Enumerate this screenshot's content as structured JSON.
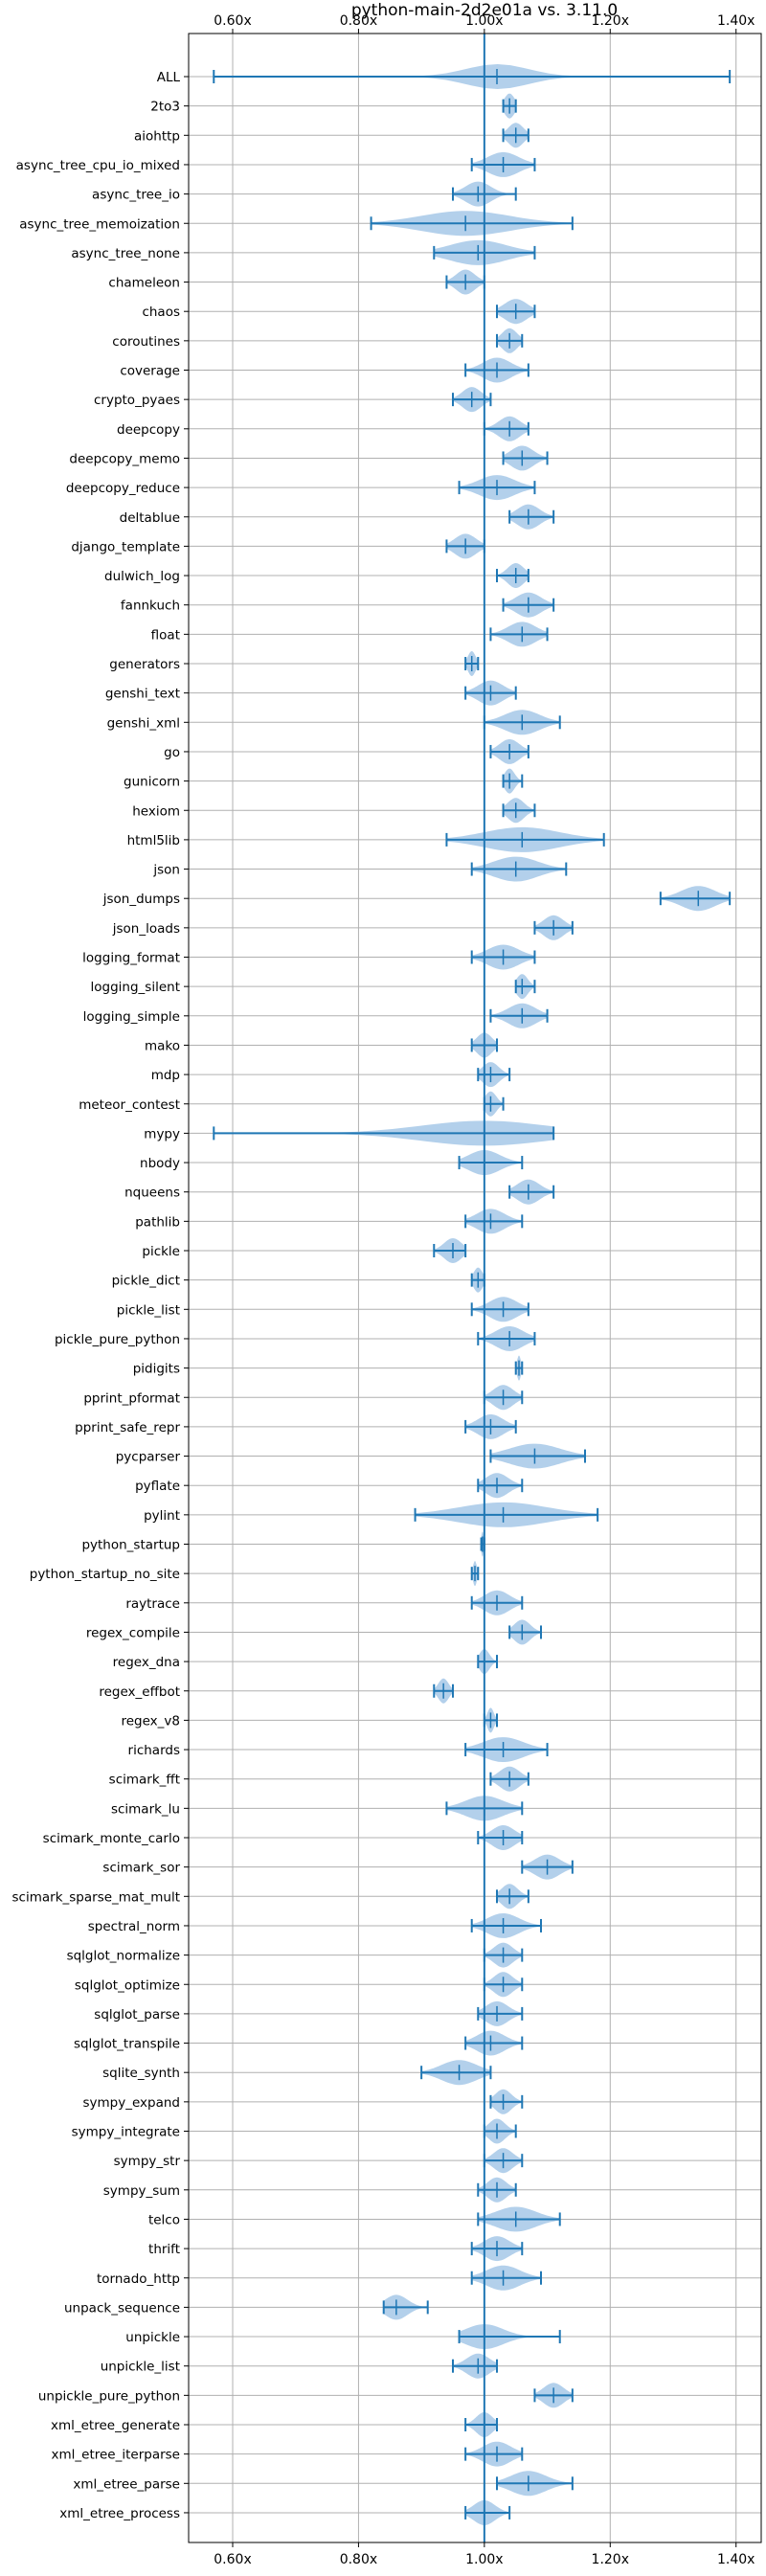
{
  "chart_data": {
    "type": "violin",
    "title": "python-main-2d2e01a vs. 3.11.0",
    "x_ticks": [
      "0.60x",
      "0.80x",
      "1.00x",
      "1.20x",
      "1.40x"
    ],
    "x_tick_values": [
      0.6,
      0.8,
      1.0,
      1.2,
      1.4
    ],
    "xlim": [
      0.53,
      1.44
    ],
    "reference_line": 1.0,
    "grid": true,
    "colors": {
      "violin_fill": "#a6c8e8",
      "line": "#1f77b4",
      "grid": "#b0b0b0"
    },
    "benchmarks": [
      {
        "name": "ALL",
        "min": 0.57,
        "max": 1.39,
        "median": 1.02,
        "spread": 0.05
      },
      {
        "name": "2to3",
        "min": 1.03,
        "max": 1.05,
        "median": 1.04,
        "spread": 0.008
      },
      {
        "name": "aiohttp",
        "min": 1.03,
        "max": 1.07,
        "median": 1.05,
        "spread": 0.012
      },
      {
        "name": "async_tree_cpu_io_mixed",
        "min": 0.98,
        "max": 1.08,
        "median": 1.03,
        "spread": 0.025
      },
      {
        "name": "async_tree_io",
        "min": 0.95,
        "max": 1.05,
        "median": 0.99,
        "spread": 0.02
      },
      {
        "name": "async_tree_memoization",
        "min": 0.82,
        "max": 1.14,
        "median": 0.97,
        "spread": 0.07
      },
      {
        "name": "async_tree_none",
        "min": 0.92,
        "max": 1.08,
        "median": 0.99,
        "spread": 0.045
      },
      {
        "name": "chameleon",
        "min": 0.94,
        "max": 1.0,
        "median": 0.97,
        "spread": 0.015
      },
      {
        "name": "chaos",
        "min": 1.02,
        "max": 1.08,
        "median": 1.05,
        "spread": 0.018
      },
      {
        "name": "coroutines",
        "min": 1.02,
        "max": 1.06,
        "median": 1.04,
        "spread": 0.012
      },
      {
        "name": "coverage",
        "min": 0.97,
        "max": 1.07,
        "median": 1.02,
        "spread": 0.022
      },
      {
        "name": "crypto_pyaes",
        "min": 0.95,
        "max": 1.01,
        "median": 0.98,
        "spread": 0.015
      },
      {
        "name": "deepcopy",
        "min": 1.0,
        "max": 1.07,
        "median": 1.04,
        "spread": 0.017
      },
      {
        "name": "deepcopy_memo",
        "min": 1.03,
        "max": 1.1,
        "median": 1.06,
        "spread": 0.018
      },
      {
        "name": "deepcopy_reduce",
        "min": 0.96,
        "max": 1.08,
        "median": 1.02,
        "spread": 0.028
      },
      {
        "name": "deltablue",
        "min": 1.04,
        "max": 1.11,
        "median": 1.07,
        "spread": 0.018
      },
      {
        "name": "django_template",
        "min": 0.94,
        "max": 1.0,
        "median": 0.97,
        "spread": 0.017
      },
      {
        "name": "dulwich_log",
        "min": 1.02,
        "max": 1.07,
        "median": 1.05,
        "spread": 0.013
      },
      {
        "name": "fannkuch",
        "min": 1.03,
        "max": 1.11,
        "median": 1.07,
        "spread": 0.02
      },
      {
        "name": "float",
        "min": 1.01,
        "max": 1.1,
        "median": 1.06,
        "spread": 0.022
      },
      {
        "name": "generators",
        "min": 0.97,
        "max": 0.99,
        "median": 0.98,
        "spread": 0.006
      },
      {
        "name": "genshi_text",
        "min": 0.97,
        "max": 1.05,
        "median": 1.01,
        "spread": 0.02
      },
      {
        "name": "genshi_xml",
        "min": 1.0,
        "max": 1.12,
        "median": 1.06,
        "spread": 0.028
      },
      {
        "name": "go",
        "min": 1.01,
        "max": 1.07,
        "median": 1.04,
        "spread": 0.016
      },
      {
        "name": "gunicorn",
        "min": 1.03,
        "max": 1.06,
        "median": 1.04,
        "spread": 0.008
      },
      {
        "name": "hexiom",
        "min": 1.03,
        "max": 1.08,
        "median": 1.05,
        "spread": 0.013
      },
      {
        "name": "html5lib",
        "min": 0.94,
        "max": 1.19,
        "median": 1.06,
        "spread": 0.06
      },
      {
        "name": "json",
        "min": 0.98,
        "max": 1.13,
        "median": 1.05,
        "spread": 0.035
      },
      {
        "name": "json_dumps",
        "min": 1.28,
        "max": 1.39,
        "median": 1.34,
        "spread": 0.027
      },
      {
        "name": "json_loads",
        "min": 1.08,
        "max": 1.14,
        "median": 1.11,
        "spread": 0.016
      },
      {
        "name": "logging_format",
        "min": 0.98,
        "max": 1.08,
        "median": 1.03,
        "spread": 0.025
      },
      {
        "name": "logging_silent",
        "min": 1.05,
        "max": 1.08,
        "median": 1.06,
        "spread": 0.009
      },
      {
        "name": "logging_simple",
        "min": 1.01,
        "max": 1.1,
        "median": 1.06,
        "spread": 0.022
      },
      {
        "name": "mako",
        "min": 0.98,
        "max": 1.02,
        "median": 1.0,
        "spread": 0.012
      },
      {
        "name": "mdp",
        "min": 0.99,
        "max": 1.04,
        "median": 1.01,
        "spread": 0.013
      },
      {
        "name": "meteor_contest",
        "min": 1.0,
        "max": 1.03,
        "median": 1.01,
        "spread": 0.009
      },
      {
        "name": "mypy",
        "min": 0.57,
        "max": 1.11,
        "median": 1.0,
        "spread": 0.1
      },
      {
        "name": "nbody",
        "min": 0.96,
        "max": 1.06,
        "median": 1.0,
        "spread": 0.025
      },
      {
        "name": "nqueens",
        "min": 1.04,
        "max": 1.11,
        "median": 1.07,
        "spread": 0.018
      },
      {
        "name": "pathlib",
        "min": 0.97,
        "max": 1.06,
        "median": 1.01,
        "spread": 0.022
      },
      {
        "name": "pickle",
        "min": 0.92,
        "max": 0.97,
        "median": 0.95,
        "spread": 0.014
      },
      {
        "name": "pickle_dict",
        "min": 0.98,
        "max": 1.0,
        "median": 0.99,
        "spread": 0.007
      },
      {
        "name": "pickle_list",
        "min": 0.98,
        "max": 1.07,
        "median": 1.03,
        "spread": 0.022
      },
      {
        "name": "pickle_pure_python",
        "min": 0.99,
        "max": 1.08,
        "median": 1.04,
        "spread": 0.022
      },
      {
        "name": "pidigits",
        "min": 1.05,
        "max": 1.06,
        "median": 1.055,
        "spread": 0.003
      },
      {
        "name": "pprint_pformat",
        "min": 1.0,
        "max": 1.06,
        "median": 1.03,
        "spread": 0.016
      },
      {
        "name": "pprint_safe_repr",
        "min": 0.97,
        "max": 1.05,
        "median": 1.01,
        "spread": 0.02
      },
      {
        "name": "pycparser",
        "min": 1.01,
        "max": 1.16,
        "median": 1.08,
        "spread": 0.04
      },
      {
        "name": "pyflate",
        "min": 0.99,
        "max": 1.06,
        "median": 1.02,
        "spread": 0.018
      },
      {
        "name": "pylint",
        "min": 0.89,
        "max": 1.18,
        "median": 1.03,
        "spread": 0.07
      },
      {
        "name": "python_startup",
        "min": 0.995,
        "max": 1.0,
        "median": 0.997,
        "spread": 0.002
      },
      {
        "name": "python_startup_no_site",
        "min": 0.98,
        "max": 0.99,
        "median": 0.985,
        "spread": 0.003
      },
      {
        "name": "raytrace",
        "min": 0.98,
        "max": 1.06,
        "median": 1.02,
        "spread": 0.02
      },
      {
        "name": "regex_compile",
        "min": 1.04,
        "max": 1.09,
        "median": 1.06,
        "spread": 0.013
      },
      {
        "name": "regex_dna",
        "min": 0.99,
        "max": 1.02,
        "median": 1.0,
        "spread": 0.008
      },
      {
        "name": "regex_effbot",
        "min": 0.92,
        "max": 0.95,
        "median": 0.935,
        "spread": 0.008
      },
      {
        "name": "regex_v8",
        "min": 1.0,
        "max": 1.02,
        "median": 1.01,
        "spread": 0.005
      },
      {
        "name": "richards",
        "min": 0.97,
        "max": 1.1,
        "median": 1.03,
        "spread": 0.032
      },
      {
        "name": "scimark_fft",
        "min": 1.01,
        "max": 1.07,
        "median": 1.04,
        "spread": 0.016
      },
      {
        "name": "scimark_lu",
        "min": 0.94,
        "max": 1.06,
        "median": 1.0,
        "spread": 0.03
      },
      {
        "name": "scimark_monte_carlo",
        "min": 0.99,
        "max": 1.06,
        "median": 1.03,
        "spread": 0.018
      },
      {
        "name": "scimark_sor",
        "min": 1.06,
        "max": 1.14,
        "median": 1.1,
        "spread": 0.02
      },
      {
        "name": "scimark_sparse_mat_mult",
        "min": 1.02,
        "max": 1.07,
        "median": 1.04,
        "spread": 0.013
      },
      {
        "name": "spectral_norm",
        "min": 0.98,
        "max": 1.09,
        "median": 1.03,
        "spread": 0.025
      },
      {
        "name": "sqlglot_normalize",
        "min": 1.0,
        "max": 1.06,
        "median": 1.03,
        "spread": 0.015
      },
      {
        "name": "sqlglot_optimize",
        "min": 1.0,
        "max": 1.06,
        "median": 1.03,
        "spread": 0.015
      },
      {
        "name": "sqlglot_parse",
        "min": 0.99,
        "max": 1.06,
        "median": 1.02,
        "spread": 0.018
      },
      {
        "name": "sqlglot_transpile",
        "min": 0.97,
        "max": 1.06,
        "median": 1.01,
        "spread": 0.022
      },
      {
        "name": "sqlite_synth",
        "min": 0.9,
        "max": 1.01,
        "median": 0.96,
        "spread": 0.028
      },
      {
        "name": "sympy_expand",
        "min": 1.01,
        "max": 1.06,
        "median": 1.03,
        "spread": 0.013
      },
      {
        "name": "sympy_integrate",
        "min": 1.0,
        "max": 1.05,
        "median": 1.02,
        "spread": 0.013
      },
      {
        "name": "sympy_str",
        "min": 1.0,
        "max": 1.06,
        "median": 1.03,
        "spread": 0.015
      },
      {
        "name": "sympy_sum",
        "min": 0.99,
        "max": 1.05,
        "median": 1.02,
        "spread": 0.015
      },
      {
        "name": "telco",
        "min": 0.99,
        "max": 1.12,
        "median": 1.05,
        "spread": 0.032
      },
      {
        "name": "thrift",
        "min": 0.98,
        "max": 1.06,
        "median": 1.02,
        "spread": 0.02
      },
      {
        "name": "tornado_http",
        "min": 0.98,
        "max": 1.09,
        "median": 1.03,
        "spread": 0.027
      },
      {
        "name": "unpack_sequence",
        "min": 0.84,
        "max": 0.91,
        "median": 0.86,
        "spread": 0.018
      },
      {
        "name": "unpickle",
        "min": 0.96,
        "max": 1.12,
        "median": 1.0,
        "spread": 0.03
      },
      {
        "name": "unpickle_list",
        "min": 0.95,
        "max": 1.02,
        "median": 0.99,
        "spread": 0.018
      },
      {
        "name": "unpickle_pure_python",
        "min": 1.08,
        "max": 1.14,
        "median": 1.11,
        "spread": 0.016
      },
      {
        "name": "xml_etree_generate",
        "min": 0.97,
        "max": 1.02,
        "median": 1.0,
        "spread": 0.013
      },
      {
        "name": "xml_etree_iterparse",
        "min": 0.97,
        "max": 1.06,
        "median": 1.02,
        "spread": 0.022
      },
      {
        "name": "xml_etree_parse",
        "min": 1.02,
        "max": 1.14,
        "median": 1.07,
        "spread": 0.028
      },
      {
        "name": "xml_etree_process",
        "min": 0.97,
        "max": 1.04,
        "median": 1.0,
        "spread": 0.017
      }
    ]
  }
}
